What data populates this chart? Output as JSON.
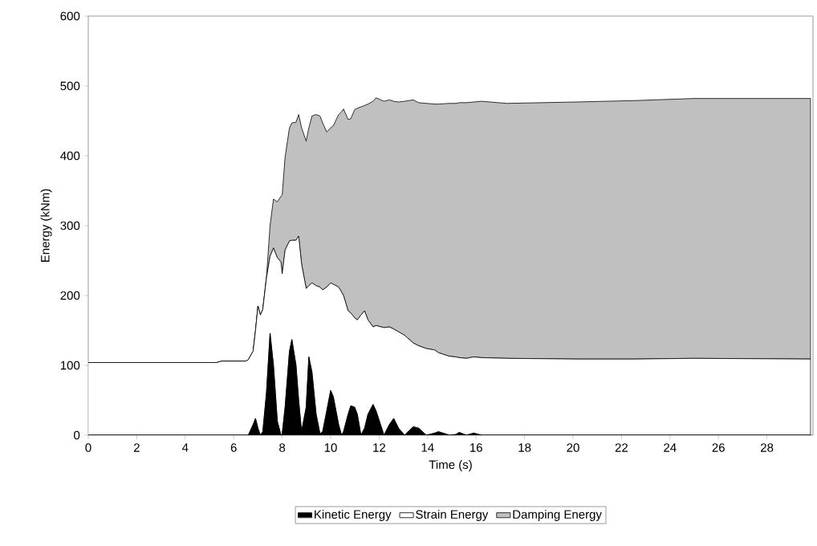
{
  "chart_data": {
    "type": "area",
    "stacked": true,
    "xlabel": "Time (s)",
    "ylabel": "Energy (kNm)",
    "legend": "bottom",
    "x": [
      0,
      5.3,
      5.5,
      6.5,
      6.6,
      6.8,
      6.9,
      7.0,
      7.1,
      7.2,
      7.35,
      7.5,
      7.64,
      7.8,
      7.95,
      8.0,
      8.12,
      8.3,
      8.4,
      8.57,
      8.68,
      8.8,
      8.99,
      9.1,
      9.23,
      9.4,
      9.56,
      9.67,
      9.84,
      10.0,
      10.11,
      10.33,
      10.45,
      10.53,
      10.72,
      10.83,
      10.99,
      11.1,
      11.25,
      11.4,
      11.54,
      11.75,
      11.87,
      12.2,
      12.42,
      12.6,
      12.8,
      13.05,
      13.41,
      13.63,
      13.95,
      14.29,
      14.45,
      14.9,
      15.17,
      15.3,
      15.6,
      15.9,
      16.23,
      17.27,
      20.13,
      22.55,
      24.97,
      29.8
    ],
    "series": [
      {
        "name": "Kinetic Energy",
        "color": "#000000",
        "values": [
          0,
          0,
          0,
          0,
          0,
          15,
          24,
          10,
          0,
          5,
          60,
          146,
          100,
          20,
          0,
          2,
          40,
          120,
          137,
          100,
          50,
          5,
          40,
          112,
          90,
          30,
          2,
          5,
          35,
          64,
          55,
          15,
          0,
          5,
          30,
          42,
          40,
          30,
          0,
          10,
          30,
          44,
          35,
          0,
          15,
          24,
          10,
          0,
          12,
          10,
          0,
          3,
          5,
          0,
          1,
          4,
          0,
          3,
          0,
          0,
          0,
          0,
          0,
          0
        ]
      },
      {
        "name": "Strain Energy",
        "color": "#ffffff",
        "values": [
          104,
          104,
          106,
          106,
          108,
          105,
          126,
          175,
          172,
          175,
          165,
          110,
          168,
          234,
          248,
          229,
          225,
          158,
          142,
          179,
          235,
          240,
          170,
          102,
          128,
          184,
          210,
          203,
          177,
          154,
          161,
          197,
          205,
          195,
          148,
          133,
          128,
          135,
          172,
          168,
          135,
          111,
          122,
          154,
          140,
          128,
          138,
          143,
          120,
          118,
          124,
          119,
          113,
          113,
          111,
          107,
          110,
          109,
          111,
          110,
          109,
          109,
          110,
          109
        ]
      },
      {
        "name": "Damping Energy",
        "color": "#c0c0c0",
        "values": [
          0,
          0,
          0,
          0,
          0,
          0,
          0,
          0,
          0,
          0,
          0,
          44,
          70,
          80,
          94,
          113,
          133,
          162,
          168,
          169,
          174,
          195,
          211,
          226,
          239,
          245,
          245,
          239,
          222,
          222,
          227,
          247,
          258,
          267,
          274,
          278,
          298,
          303,
          298,
          294,
          309,
          323,
          326,
          324,
          325,
          326,
          329,
          335,
          348,
          348,
          351,
          352,
          356,
          362,
          363,
          365,
          366,
          365,
          367,
          365,
          368,
          370,
          372,
          373
        ]
      }
    ],
    "xlim": [
      0,
      29.9
    ],
    "ylim": [
      0,
      600
    ],
    "xticks": [
      0,
      2,
      4,
      6,
      8,
      10,
      12,
      14,
      16,
      18,
      20,
      22,
      24,
      26,
      28
    ],
    "yticks": [
      0,
      100,
      200,
      300,
      400,
      500,
      600
    ]
  }
}
